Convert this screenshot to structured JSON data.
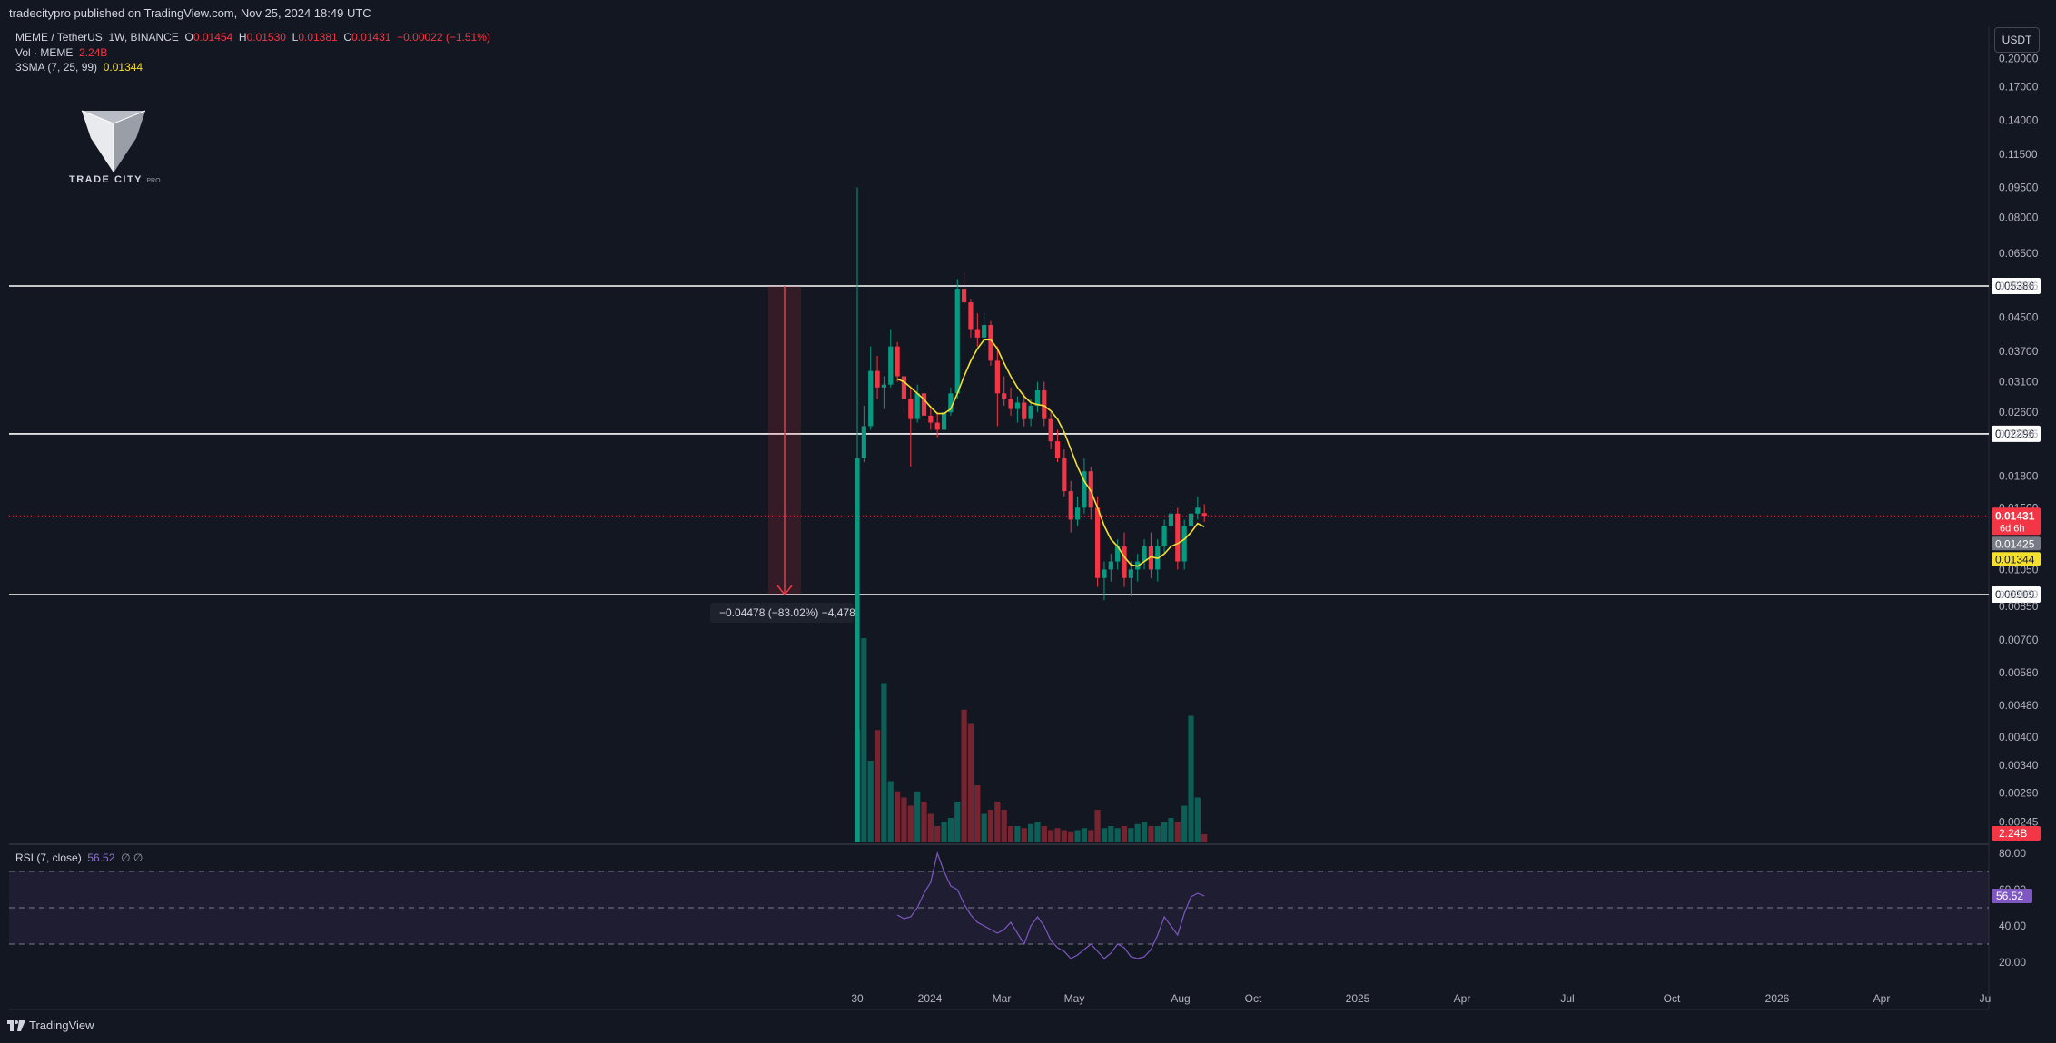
{
  "publish_line": "tradecitypro published on TradingView.com, Nov 25, 2024 18:49 UTC",
  "legend": {
    "symbol": "MEME / TetherUS, 1W, BINANCE",
    "o_label": "O",
    "o": "0.01454",
    "h_label": "H",
    "h": "0.01530",
    "l_label": "L",
    "l": "0.01381",
    "c_label": "C",
    "c": "0.01431",
    "change": "−0.00022 (−1.51%)",
    "vol_label": "Vol · MEME",
    "vol": "2.24B",
    "sma_label": "3SMA (7, 25, 99)",
    "sma": "0.01344"
  },
  "currency_button": "USDT",
  "logo": {
    "text": "TRADE CITY",
    "small": "PRO"
  },
  "footer_brand": "TradingView",
  "measure_label": "−0.04478 (−83.02%) −4,478",
  "rsi_legend": {
    "label": "RSI (7, close)",
    "value": "56.52",
    "extra": "∅ ∅"
  },
  "colors": {
    "up": "#089981",
    "down": "#f23645",
    "sma": "#f5e02d",
    "rsi": "#7e57c2",
    "bg": "#131722",
    "text": "#d1d4dc"
  },
  "chart_data": [
    {
      "type": "candlestick",
      "scale": "log",
      "price_axis_labels": [
        "0.20000",
        "0.17000",
        "0.14000",
        "0.11500",
        "0.09500",
        "0.08000",
        "0.06500",
        "0.05386",
        "0.04500",
        "0.03700",
        "0.03100",
        "0.02600",
        "0.02296",
        "0.01800",
        "0.01500",
        "0.01050",
        "0.00909",
        "0.00850",
        "0.00700",
        "0.00580",
        "0.00480",
        "0.00400",
        "0.00340",
        "0.00290",
        "0.00245"
      ],
      "horizontal_levels": [
        "0.05386",
        "0.02296",
        "0.00909"
      ],
      "current_price": {
        "value": "0.01431",
        "countdown": "6d 6h"
      },
      "extra_price_badges": [
        {
          "value": "0.01425",
          "color": "#787b86"
        },
        {
          "value": "0.01344",
          "color": "#f5e02d"
        }
      ],
      "volume_badge": "2.24B",
      "x_axis_labels": [
        "30",
        "2024",
        "Mar",
        "May",
        "Aug",
        "Oct",
        "2025",
        "Apr",
        "Jul",
        "Oct",
        "2026",
        "Apr",
        "Ju"
      ],
      "candles_ohlc": [
        [
          0.0095,
          0.095,
          0.006,
          0.02
        ],
        [
          0.02,
          0.027,
          0.0195,
          0.024
        ],
        [
          0.024,
          0.038,
          0.0235,
          0.033
        ],
        [
          0.033,
          0.036,
          0.028,
          0.03
        ],
        [
          0.03,
          0.032,
          0.0265,
          0.0305
        ],
        [
          0.0305,
          0.042,
          0.03,
          0.038
        ],
        [
          0.038,
          0.039,
          0.031,
          0.032
        ],
        [
          0.032,
          0.033,
          0.026,
          0.028
        ],
        [
          0.028,
          0.03,
          0.019,
          0.025
        ],
        [
          0.025,
          0.0305,
          0.0245,
          0.029
        ],
        [
          0.029,
          0.03,
          0.024,
          0.0255
        ],
        [
          0.0255,
          0.027,
          0.0235,
          0.0245
        ],
        [
          0.0245,
          0.026,
          0.0225,
          0.0235
        ],
        [
          0.0235,
          0.027,
          0.023,
          0.026
        ],
        [
          0.026,
          0.03,
          0.0255,
          0.029
        ],
        [
          0.029,
          0.056,
          0.028,
          0.053
        ],
        [
          0.053,
          0.058,
          0.048,
          0.049
        ],
        [
          0.049,
          0.05,
          0.04,
          0.042
        ],
        [
          0.042,
          0.046,
          0.038,
          0.04
        ],
        [
          0.04,
          0.046,
          0.038,
          0.043
        ],
        [
          0.043,
          0.044,
          0.034,
          0.035
        ],
        [
          0.035,
          0.038,
          0.024,
          0.029
        ],
        [
          0.029,
          0.032,
          0.027,
          0.028
        ],
        [
          0.028,
          0.03,
          0.0255,
          0.0265
        ],
        [
          0.0265,
          0.0285,
          0.0245,
          0.0275
        ],
        [
          0.0275,
          0.029,
          0.024,
          0.025
        ],
        [
          0.025,
          0.028,
          0.024,
          0.027
        ],
        [
          0.027,
          0.031,
          0.026,
          0.0295
        ],
        [
          0.0295,
          0.031,
          0.024,
          0.025
        ],
        [
          0.025,
          0.026,
          0.021,
          0.022
        ],
        [
          0.022,
          0.0235,
          0.0195,
          0.02
        ],
        [
          0.02,
          0.021,
          0.016,
          0.0165
        ],
        [
          0.0165,
          0.0175,
          0.013,
          0.014
        ],
        [
          0.014,
          0.016,
          0.0135,
          0.015
        ],
        [
          0.015,
          0.02,
          0.0145,
          0.0185
        ],
        [
          0.0185,
          0.019,
          0.014,
          0.015
        ],
        [
          0.015,
          0.016,
          0.0095,
          0.01
        ],
        [
          0.01,
          0.011,
          0.0088,
          0.0105
        ],
        [
          0.0105,
          0.0115,
          0.0098,
          0.011
        ],
        [
          0.011,
          0.0125,
          0.0105,
          0.012
        ],
        [
          0.012,
          0.013,
          0.0095,
          0.01
        ],
        [
          0.01,
          0.011,
          0.009,
          0.0105
        ],
        [
          0.0105,
          0.0115,
          0.0098,
          0.011
        ],
        [
          0.011,
          0.0125,
          0.0105,
          0.012
        ],
        [
          0.012,
          0.013,
          0.01,
          0.0105
        ],
        [
          0.0105,
          0.0125,
          0.0098,
          0.012
        ],
        [
          0.012,
          0.014,
          0.0115,
          0.0135
        ],
        [
          0.0135,
          0.0155,
          0.013,
          0.0145
        ],
        [
          0.0145,
          0.015,
          0.0105,
          0.011
        ],
        [
          0.011,
          0.014,
          0.0105,
          0.0135
        ],
        [
          0.0135,
          0.0152,
          0.013,
          0.0145
        ],
        [
          0.0145,
          0.016,
          0.014,
          0.015
        ],
        [
          0.01454,
          0.0153,
          0.01381,
          0.01431
        ]
      ],
      "sma": [
        null,
        null,
        null,
        null,
        null,
        null,
        0.0315,
        0.031,
        0.03,
        0.029,
        0.028,
        0.0268,
        0.0258,
        0.0258,
        0.0265,
        0.029,
        0.032,
        0.035,
        0.0375,
        0.0395,
        0.0395,
        0.0375,
        0.0345,
        0.032,
        0.03,
        0.0285,
        0.0275,
        0.0272,
        0.027,
        0.0262,
        0.025,
        0.0232,
        0.021,
        0.019,
        0.0175,
        0.0165,
        0.015,
        0.0135,
        0.0125,
        0.012,
        0.0113,
        0.0108,
        0.0107,
        0.011,
        0.0113,
        0.0112,
        0.0115,
        0.012,
        0.0122,
        0.0125,
        0.013,
        0.0137,
        0.01344
      ],
      "volume_relative": [
        0.55,
        1.0,
        0.4,
        0.55,
        0.78,
        0.3,
        0.25,
        0.22,
        0.18,
        0.25,
        0.2,
        0.14,
        0.08,
        0.1,
        0.12,
        0.2,
        0.65,
        0.58,
        0.28,
        0.14,
        0.16,
        0.2,
        0.16,
        0.08,
        0.08,
        0.07,
        0.09,
        0.1,
        0.08,
        0.06,
        0.07,
        0.06,
        0.05,
        0.06,
        0.07,
        0.06,
        0.16,
        0.07,
        0.08,
        0.07,
        0.08,
        0.07,
        0.09,
        0.1,
        0.08,
        0.08,
        0.1,
        0.12,
        0.1,
        0.18,
        0.62,
        0.22,
        0.04
      ]
    },
    {
      "type": "line",
      "title": "RSI (7, close)",
      "y_axis_labels": [
        "80.00",
        "60.00",
        "40.00",
        "20.00"
      ],
      "bands": [
        70,
        30
      ],
      "last_value": "56.52",
      "values": [
        60,
        55,
        50,
        55,
        52,
        48,
        46,
        44,
        45,
        50,
        58,
        64,
        80,
        70,
        62,
        60,
        52,
        46,
        42,
        40,
        38,
        36,
        38,
        42,
        36,
        30,
        40,
        45,
        40,
        32,
        28,
        26,
        22,
        24,
        27,
        30,
        26,
        22,
        25,
        30,
        28,
        23,
        22,
        23,
        27,
        35,
        45,
        40,
        35,
        47,
        56,
        58,
        56.52
      ]
    }
  ]
}
